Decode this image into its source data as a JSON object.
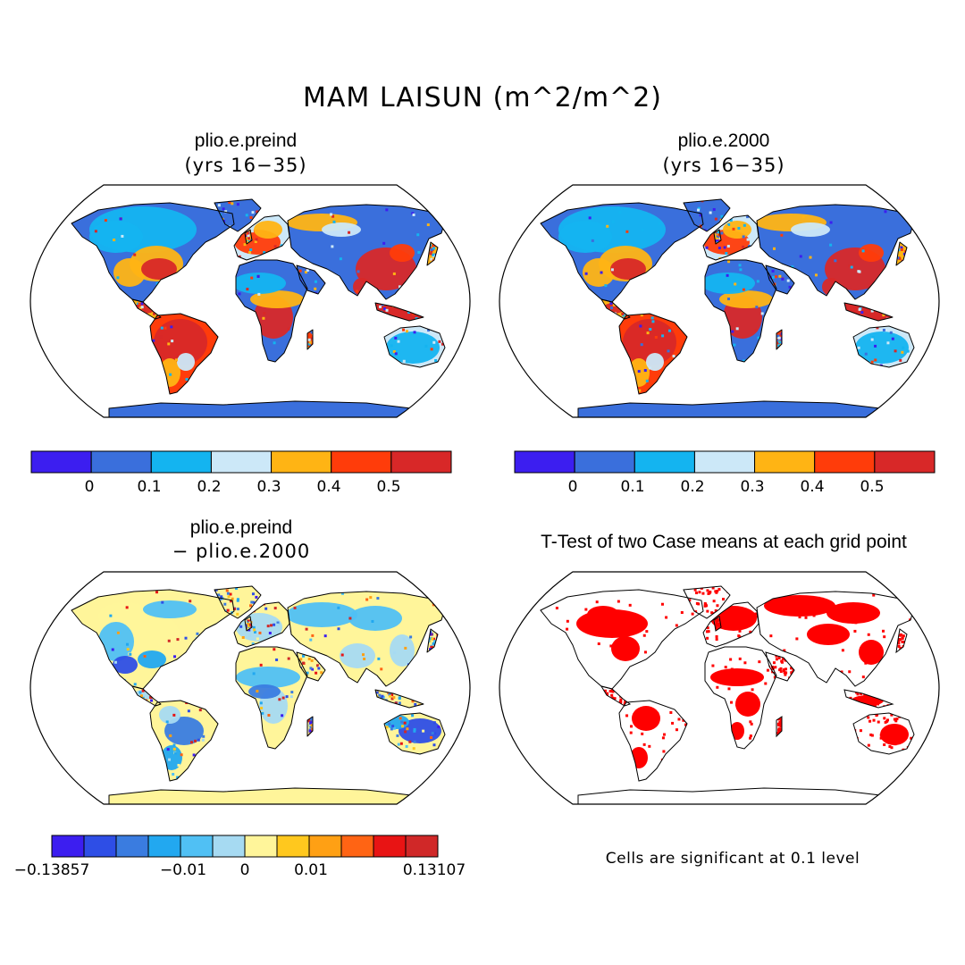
{
  "title": "MAM LAISUN (m^2/m^2)",
  "panels": [
    {
      "id": "preind",
      "title": "plio.e.preind",
      "subtitle": "(yrs 16−35)"
    },
    {
      "id": "p2000",
      "title": "plio.e.2000",
      "subtitle": "(yrs 16−35)"
    },
    {
      "id": "diff",
      "title": "plio.e.preind",
      "subtitle": "− plio.e.2000"
    },
    {
      "id": "ttest",
      "title": "T-Test of two Case means at each grid point",
      "subtitle": ""
    }
  ],
  "colorbar_abs": {
    "colors": [
      "#3c1ef0",
      "#3a6fdc",
      "#14b4f0",
      "#cce8f8",
      "#ffb414",
      "#ff3c0a",
      "#d82828"
    ],
    "labels": [
      "0",
      "0.1",
      "0.2",
      "0.3",
      "0.4",
      "0.5"
    ]
  },
  "colorbar_diff": {
    "colors": [
      "#3c1ef0",
      "#2e4ee6",
      "#3a7ce0",
      "#22a8f0",
      "#50c0f4",
      "#a6daf2",
      "#fff59a",
      "#ffc81e",
      "#ffa014",
      "#ff6414",
      "#e81414",
      "#d02828"
    ],
    "labels": [
      "−0.13857",
      "−0.01",
      "0",
      "0.01",
      "0.13107"
    ]
  },
  "ttest_note": "Cells are significant at 0.1 level",
  "ttest_color": "#ff0000"
}
